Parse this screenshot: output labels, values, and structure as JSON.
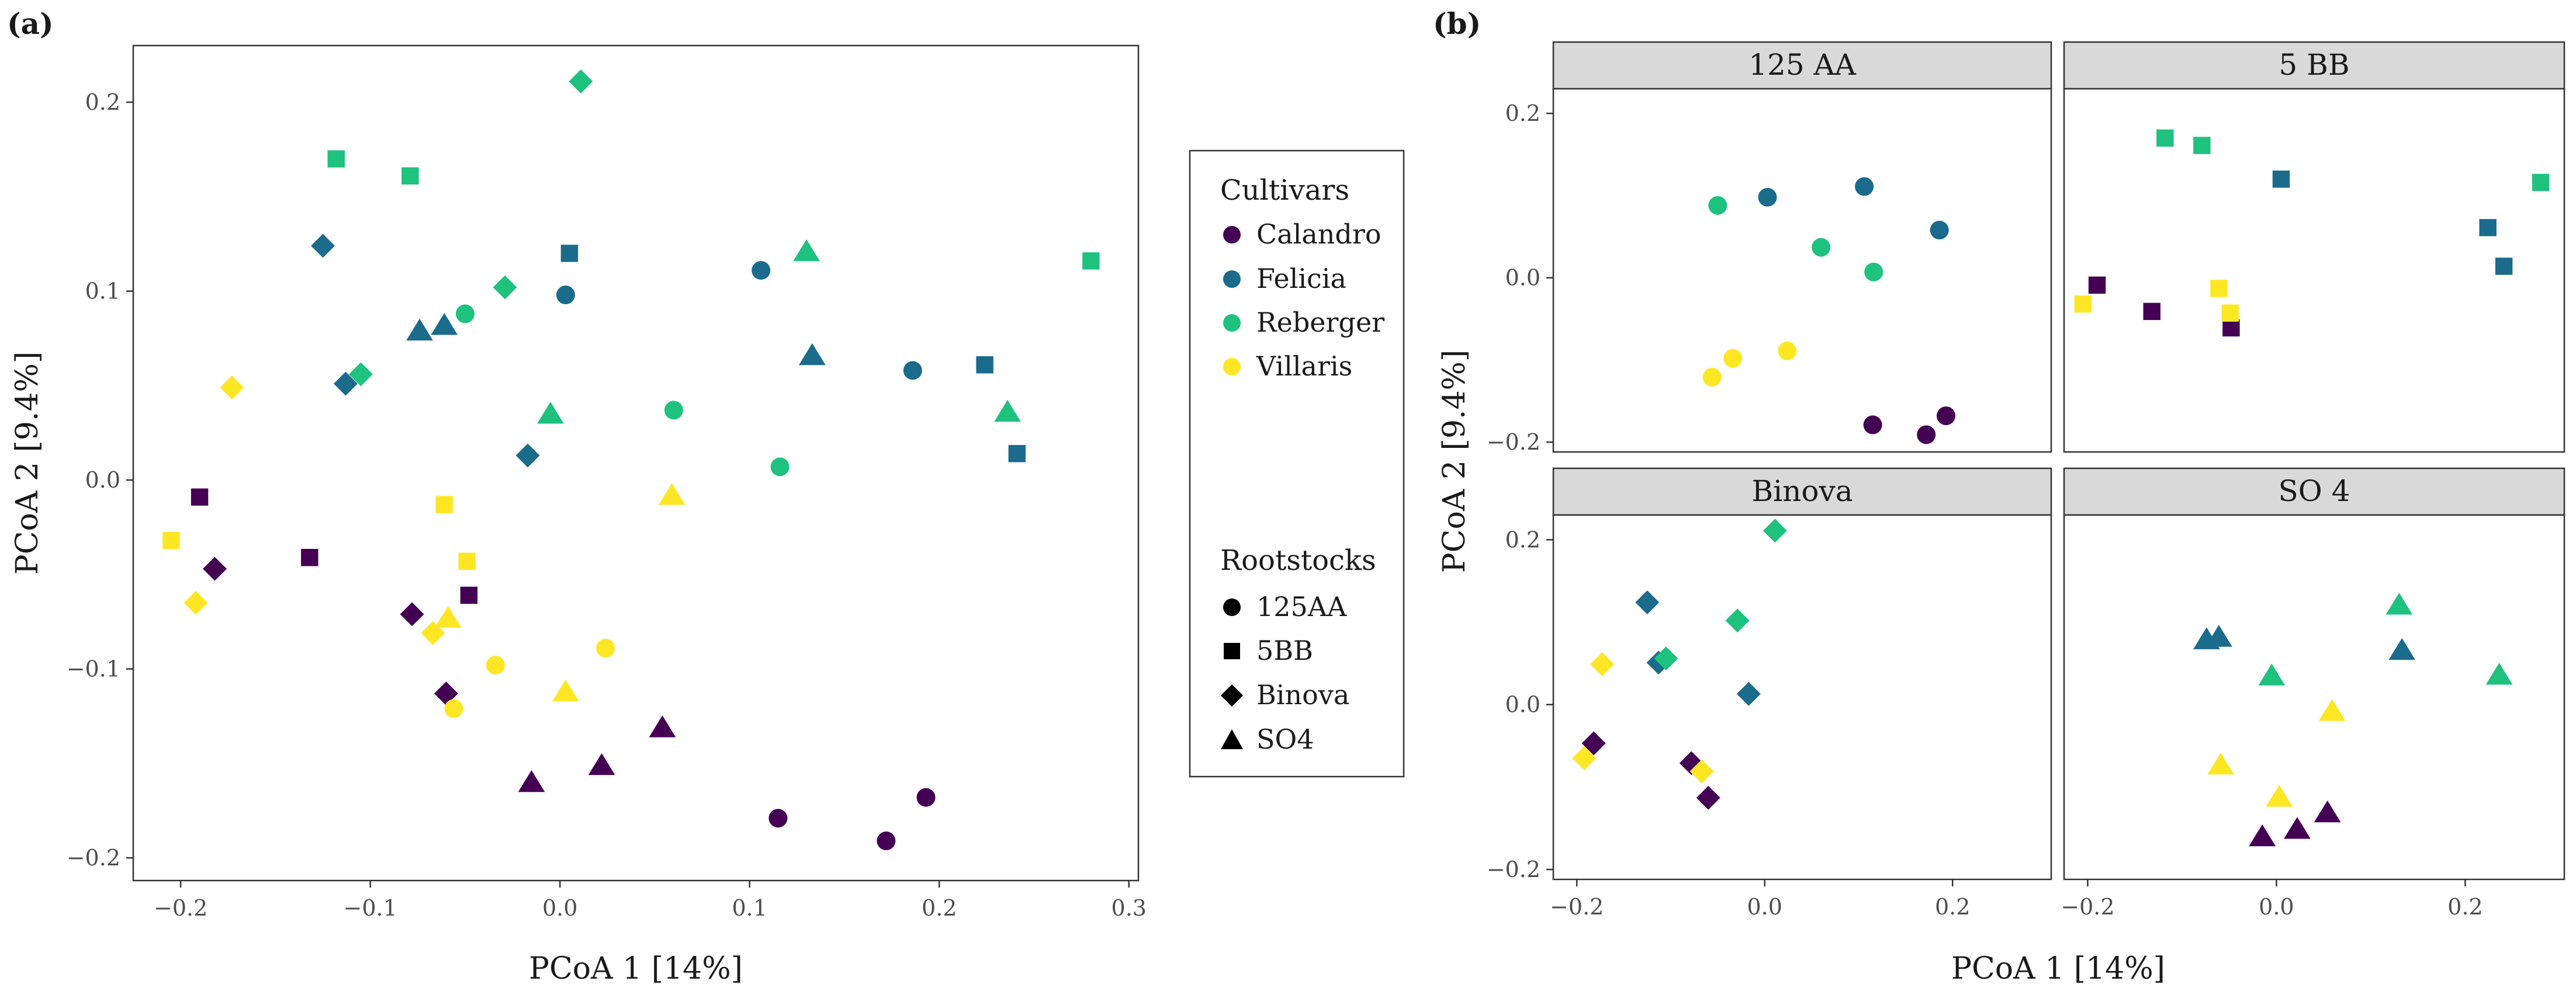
{
  "figure_labels": {
    "a": "(a)",
    "b": "(b)"
  },
  "colors": {
    "Calandro": "#440154",
    "Felicia": "#1b6b8c",
    "Reberger": "#1ec27e",
    "Villaris": "#fde725"
  },
  "legend": {
    "cultivars_title": "Cultivars",
    "cultivars": [
      {
        "label": "Calandro",
        "color": "#440154"
      },
      {
        "label": "Felicia",
        "color": "#1b6b8c"
      },
      {
        "label": "Reberger",
        "color": "#1ec27e"
      },
      {
        "label": "Villaris",
        "color": "#fde725"
      }
    ],
    "rootstocks_title": "Rootstocks",
    "rootstocks": [
      {
        "label": "125AA",
        "shape": "circle"
      },
      {
        "label": "5BB",
        "shape": "square"
      },
      {
        "label": "Binova",
        "shape": "diamond"
      },
      {
        "label": "SO4",
        "shape": "triangle"
      }
    ]
  },
  "chart_data": [
    {
      "id": "a",
      "type": "scatter",
      "xlabel": "PCoA 1   [14%]",
      "ylabel": "PCoA 2   [9.4%]",
      "xlim": [
        -0.225,
        0.305
      ],
      "ylim": [
        -0.212,
        0.23
      ],
      "xticks": [
        -0.2,
        -0.1,
        0.0,
        0.1,
        0.2,
        0.3
      ],
      "xtick_labels": [
        "−0.2",
        "−0.1",
        "0.0",
        "0.1",
        "0.2",
        "0.3"
      ],
      "yticks": [
        -0.2,
        -0.1,
        0.0,
        0.1,
        0.2
      ],
      "ytick_labels": [
        "−0.2",
        "−0.1",
        "0.0",
        "0.1",
        "0.2"
      ],
      "points": [
        {
          "cultivar": "Calandro",
          "rootstock": "125AA",
          "x": 0.115,
          "y": -0.179
        },
        {
          "cultivar": "Calandro",
          "rootstock": "125AA",
          "x": 0.172,
          "y": -0.191
        },
        {
          "cultivar": "Calandro",
          "rootstock": "125AA",
          "x": 0.193,
          "y": -0.168
        },
        {
          "cultivar": "Calandro",
          "rootstock": "5BB",
          "x": -0.19,
          "y": -0.009
        },
        {
          "cultivar": "Calandro",
          "rootstock": "5BB",
          "x": -0.132,
          "y": -0.041
        },
        {
          "cultivar": "Calandro",
          "rootstock": "5BB",
          "x": -0.048,
          "y": -0.061
        },
        {
          "cultivar": "Calandro",
          "rootstock": "Binova",
          "x": -0.182,
          "y": -0.047
        },
        {
          "cultivar": "Calandro",
          "rootstock": "Binova",
          "x": -0.078,
          "y": -0.071
        },
        {
          "cultivar": "Calandro",
          "rootstock": "Binova",
          "x": -0.06,
          "y": -0.113
        },
        {
          "cultivar": "Calandro",
          "rootstock": "SO4",
          "x": -0.015,
          "y": -0.16
        },
        {
          "cultivar": "Calandro",
          "rootstock": "SO4",
          "x": 0.022,
          "y": -0.151
        },
        {
          "cultivar": "Calandro",
          "rootstock": "SO4",
          "x": 0.054,
          "y": -0.131
        },
        {
          "cultivar": "Felicia",
          "rootstock": "125AA",
          "x": 0.003,
          "y": 0.098
        },
        {
          "cultivar": "Felicia",
          "rootstock": "125AA",
          "x": 0.106,
          "y": 0.111
        },
        {
          "cultivar": "Felicia",
          "rootstock": "125AA",
          "x": 0.186,
          "y": 0.058
        },
        {
          "cultivar": "Felicia",
          "rootstock": "5BB",
          "x": 0.005,
          "y": 0.12
        },
        {
          "cultivar": "Felicia",
          "rootstock": "5BB",
          "x": 0.224,
          "y": 0.061
        },
        {
          "cultivar": "Felicia",
          "rootstock": "5BB",
          "x": 0.241,
          "y": 0.014
        },
        {
          "cultivar": "Felicia",
          "rootstock": "Binova",
          "x": -0.125,
          "y": 0.124
        },
        {
          "cultivar": "Felicia",
          "rootstock": "Binova",
          "x": -0.113,
          "y": 0.051
        },
        {
          "cultivar": "Felicia",
          "rootstock": "Binova",
          "x": -0.017,
          "y": 0.013
        },
        {
          "cultivar": "Felicia",
          "rootstock": "SO4",
          "x": -0.074,
          "y": 0.079
        },
        {
          "cultivar": "Felicia",
          "rootstock": "SO4",
          "x": -0.061,
          "y": 0.082
        },
        {
          "cultivar": "Felicia",
          "rootstock": "SO4",
          "x": 0.133,
          "y": 0.066
        },
        {
          "cultivar": "Reberger",
          "rootstock": "125AA",
          "x": -0.05,
          "y": 0.088
        },
        {
          "cultivar": "Reberger",
          "rootstock": "125AA",
          "x": 0.06,
          "y": 0.037
        },
        {
          "cultivar": "Reberger",
          "rootstock": "125AA",
          "x": 0.116,
          "y": 0.007
        },
        {
          "cultivar": "Reberger",
          "rootstock": "5BB",
          "x": -0.118,
          "y": 0.17
        },
        {
          "cultivar": "Reberger",
          "rootstock": "5BB",
          "x": -0.079,
          "y": 0.161
        },
        {
          "cultivar": "Reberger",
          "rootstock": "5BB",
          "x": 0.28,
          "y": 0.116
        },
        {
          "cultivar": "Reberger",
          "rootstock": "Binova",
          "x": 0.011,
          "y": 0.211
        },
        {
          "cultivar": "Reberger",
          "rootstock": "Binova",
          "x": -0.029,
          "y": 0.102
        },
        {
          "cultivar": "Reberger",
          "rootstock": "Binova",
          "x": -0.105,
          "y": 0.056
        },
        {
          "cultivar": "Reberger",
          "rootstock": "SO4",
          "x": 0.13,
          "y": 0.121
        },
        {
          "cultivar": "Reberger",
          "rootstock": "SO4",
          "x": -0.005,
          "y": 0.035
        },
        {
          "cultivar": "Reberger",
          "rootstock": "SO4",
          "x": 0.236,
          "y": 0.036
        },
        {
          "cultivar": "Villaris",
          "rootstock": "125AA",
          "x": -0.056,
          "y": -0.121
        },
        {
          "cultivar": "Villaris",
          "rootstock": "125AA",
          "x": -0.034,
          "y": -0.098
        },
        {
          "cultivar": "Villaris",
          "rootstock": "125AA",
          "x": 0.024,
          "y": -0.089
        },
        {
          "cultivar": "Villaris",
          "rootstock": "5BB",
          "x": -0.205,
          "y": -0.032
        },
        {
          "cultivar": "Villaris",
          "rootstock": "5BB",
          "x": -0.061,
          "y": -0.013
        },
        {
          "cultivar": "Villaris",
          "rootstock": "5BB",
          "x": -0.049,
          "y": -0.043
        },
        {
          "cultivar": "Villaris",
          "rootstock": "Binova",
          "x": -0.173,
          "y": 0.049
        },
        {
          "cultivar": "Villaris",
          "rootstock": "Binova",
          "x": -0.192,
          "y": -0.065
        },
        {
          "cultivar": "Villaris",
          "rootstock": "Binova",
          "x": -0.067,
          "y": -0.081
        },
        {
          "cultivar": "Villaris",
          "rootstock": "SO4",
          "x": -0.059,
          "y": -0.073
        },
        {
          "cultivar": "Villaris",
          "rootstock": "SO4",
          "x": 0.003,
          "y": -0.112
        },
        {
          "cultivar": "Villaris",
          "rootstock": "SO4",
          "x": 0.059,
          "y": -0.008
        }
      ]
    },
    {
      "id": "b",
      "type": "scatter",
      "faceted_by": "rootstock",
      "xlabel": "PCoA 1   [14%]",
      "ylabel": "PCoA 2   [9.4%]",
      "xlim": [
        -0.225,
        0.305
      ],
      "ylim": [
        -0.212,
        0.23
      ],
      "xticks": [
        -0.2,
        0.0,
        0.2
      ],
      "xtick_labels": [
        "−0.2",
        "0.0",
        "0.2"
      ],
      "yticks": [
        -0.2,
        0.0,
        0.2
      ],
      "ytick_labels": [
        "−0.2",
        "0.0",
        "0.2"
      ],
      "facets": [
        {
          "title": "125 AA",
          "rootstock": "125AA",
          "position": "top-left"
        },
        {
          "title": "5 BB",
          "rootstock": "5BB",
          "position": "top-right"
        },
        {
          "title": "Binova",
          "rootstock": "Binova",
          "position": "bottom-left"
        },
        {
          "title": "SO 4",
          "rootstock": "SO4",
          "position": "bottom-right"
        }
      ],
      "points_source": "same data as panel (a), split by rootstock"
    }
  ]
}
